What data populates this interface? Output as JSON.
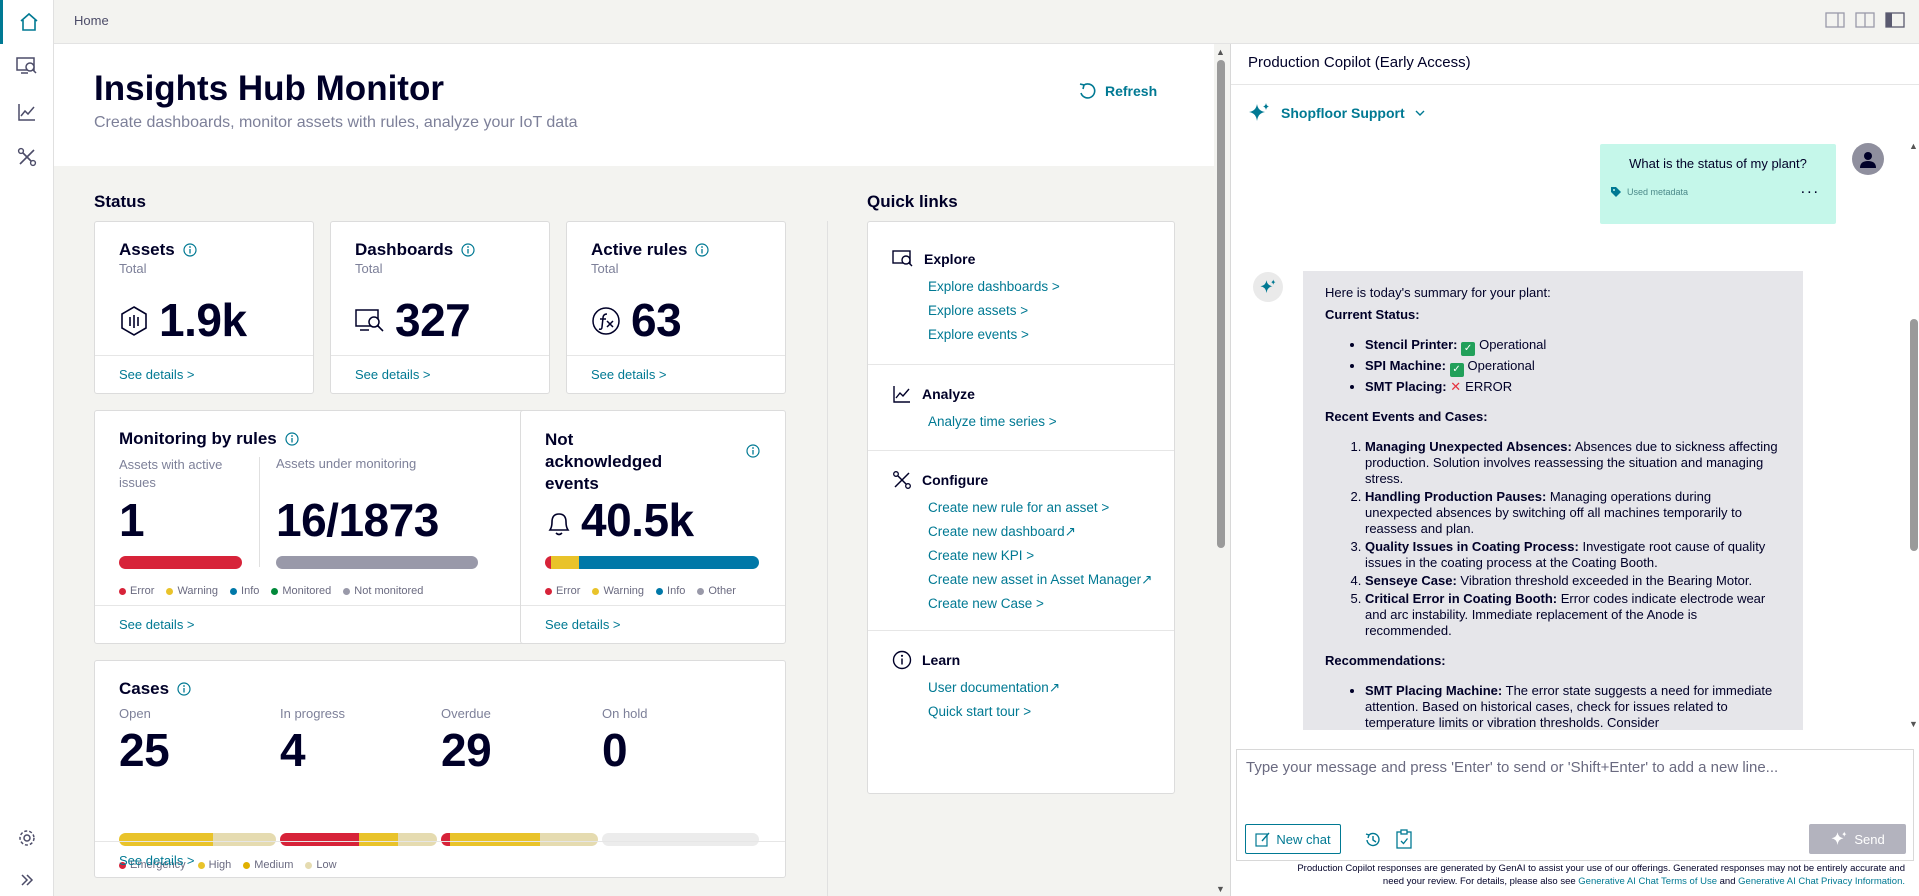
{
  "nav": {
    "breadcrumb": "Home",
    "rail": [
      "home-icon",
      "monitor-icon",
      "chart-icon",
      "tools-icon",
      "settings-icon",
      "expand-icon"
    ]
  },
  "header": {
    "title": "Insights Hub Monitor",
    "subtitle": "Create dashboards, monitor assets with rules, analyze your IoT data",
    "refresh_label": "Refresh"
  },
  "status": {
    "heading": "Status",
    "assets": {
      "title": "Assets",
      "sub": "Total",
      "value": "1.9k",
      "link": "See details >"
    },
    "dashboards": {
      "title": "Dashboards",
      "sub": "Total",
      "value": "327",
      "link": "See details >"
    },
    "active_rules": {
      "title": "Active rules",
      "sub": "Total",
      "value": "63",
      "link": "See details >"
    },
    "monitoring": {
      "title": "Monitoring by rules",
      "active_label": "Assets with active issues",
      "active_value": "1",
      "monitor_label": "Assets under monitoring",
      "monitor_value": "16/1873",
      "legend": [
        "Error",
        "Warning",
        "Info",
        "Monitored",
        "Not monitored"
      ],
      "link": "See details >"
    },
    "events": {
      "title": "Not acknowledged events",
      "value": "40.5k",
      "legend": [
        "Error",
        "Warning",
        "Info",
        "Other"
      ],
      "link": "See details >"
    },
    "cases": {
      "title": "Cases",
      "cols": [
        {
          "label": "Open",
          "value": "25"
        },
        {
          "label": "In progress",
          "value": "4"
        },
        {
          "label": "Overdue",
          "value": "29"
        },
        {
          "label": "On hold",
          "value": "0"
        }
      ],
      "legend": [
        "Emergency",
        "High",
        "Medium",
        "Low"
      ],
      "link": "See details >"
    }
  },
  "quick_links": {
    "heading": "Quick links",
    "explore": {
      "title": "Explore",
      "links": [
        "Explore dashboards >",
        "Explore assets >",
        "Explore events >"
      ]
    },
    "analyze": {
      "title": "Analyze",
      "links": [
        "Analyze time series >"
      ]
    },
    "configure": {
      "title": "Configure",
      "links": [
        "Create new rule for an asset >",
        "Create new dashboard",
        "Create new KPI >",
        "Create new asset in Asset Manager",
        "Create new Case >"
      ]
    },
    "learn": {
      "title": "Learn",
      "links": [
        "User documentation",
        "Quick start tour >"
      ]
    }
  },
  "copilot": {
    "title": "Production Copilot (Early Access)",
    "mode": "Shopfloor Support",
    "user_message": "What is the status of my plant?",
    "metadata_label": "Used metadata",
    "more": "...",
    "bot": {
      "intro": "Here is today's summary for your plant:",
      "current_status": "Current Status:",
      "status_items": [
        {
          "name": "Stencil Printer:",
          "state": "Operational"
        },
        {
          "name": "SPI Machine:",
          "state": "Operational"
        },
        {
          "name": "SMT Placing:",
          "state": "ERROR"
        }
      ],
      "events_heading": "Recent Events and Cases:",
      "events": [
        {
          "title": "Managing Unexpected Absences:",
          "text": "Absences due to sickness affecting production. Solution involves reassessing the situation and managing stress."
        },
        {
          "title": "Handling Production Pauses:",
          "text": "Managing operations during unexpected absences by switching off all machines temporarily to reassess and plan."
        },
        {
          "title": "Quality Issues in Coating Process:",
          "text": "Investigate root cause of quality issues in the coating process at the Coating Booth."
        },
        {
          "title": "Senseye Case:",
          "text": "Vibration threshold exceeded in the Bearing Motor."
        },
        {
          "title": "Critical Error in Coating Booth:",
          "text": "Error codes indicate electrode wear and arc instability. Immediate replacement of the Anode is recommended."
        }
      ],
      "rec_heading": "Recommendations:",
      "recommendations": [
        {
          "title": "SMT Placing Machine:",
          "text": "The error state suggests a need for immediate attention. Based on historical cases, check for issues related to temperature limits or vibration thresholds. Consider"
        }
      ]
    },
    "input_placeholder": "Type your message and press 'Enter' to send or 'Shift+Enter' to add a new line...",
    "new_chat": "New chat",
    "send": "Send",
    "disclaimer_1": "Production Copilot responses are generated by GenAI to assist your use of our offerings. Generated responses may not be entirely accurate and need your review. For details, please also see",
    "terms_link": "Generative AI Chat Terms of Use",
    "and": "and",
    "privacy_link": "Generative AI Chat Privacy Information."
  },
  "colors": {
    "accent": "#007993",
    "error": "#d72339",
    "warning": "#e9c32a",
    "info": "#0078a8",
    "monitored": "#01893a",
    "not_monitored": "#9999a9",
    "low": "#e5dbb0"
  }
}
